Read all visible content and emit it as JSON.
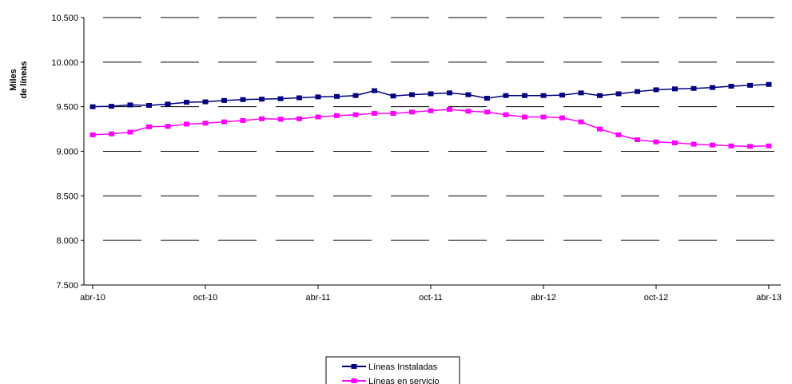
{
  "chart_data": {
    "type": "line",
    "ylabel_lines": [
      "Miles",
      "de líneas"
    ],
    "ylim": [
      7500,
      10500
    ],
    "ytick_values": [
      7500,
      8000,
      8500,
      9000,
      9500,
      10000,
      10500
    ],
    "ytick_labels": [
      "7.500",
      "8.000",
      "8.500",
      "9.000",
      "9.500",
      "10.000",
      "10.500"
    ],
    "xtick_labels": [
      {
        "index": 0,
        "label": "abr-10"
      },
      {
        "index": 6,
        "label": "oct-10"
      },
      {
        "index": 12,
        "label": "abr-11"
      },
      {
        "index": 18,
        "label": "oct-11"
      },
      {
        "index": 24,
        "label": "abr-12"
      },
      {
        "index": 30,
        "label": "oct-12"
      },
      {
        "index": 36,
        "label": "abr-13"
      }
    ],
    "grid": "horizontal-dashed",
    "legend_position": "bottom-center",
    "series": [
      {
        "name": "Líneas Instaladas",
        "color": "#000080",
        "marker": "square",
        "values": [
          9500,
          9505,
          9520,
          9515,
          9530,
          9550,
          9555,
          9570,
          9580,
          9585,
          9590,
          9600,
          9610,
          9615,
          9625,
          9680,
          9620,
          9635,
          9645,
          9655,
          9635,
          9595,
          9625,
          9625,
          9625,
          9630,
          9655,
          9625,
          9645,
          9670,
          9690,
          9700,
          9705,
          9715,
          9730,
          9740,
          9750
        ]
      },
      {
        "name": "Líneas en servicio",
        "color": "#ff00ff",
        "marker": "square",
        "values": [
          9185,
          9195,
          9215,
          9275,
          9280,
          9305,
          9315,
          9330,
          9345,
          9365,
          9360,
          9365,
          9385,
          9400,
          9410,
          9425,
          9425,
          9440,
          9455,
          9470,
          9450,
          9440,
          9410,
          9385,
          9385,
          9375,
          9330,
          9250,
          9185,
          9130,
          9105,
          9095,
          9080,
          9070,
          9060,
          9055,
          9060
        ]
      }
    ]
  }
}
